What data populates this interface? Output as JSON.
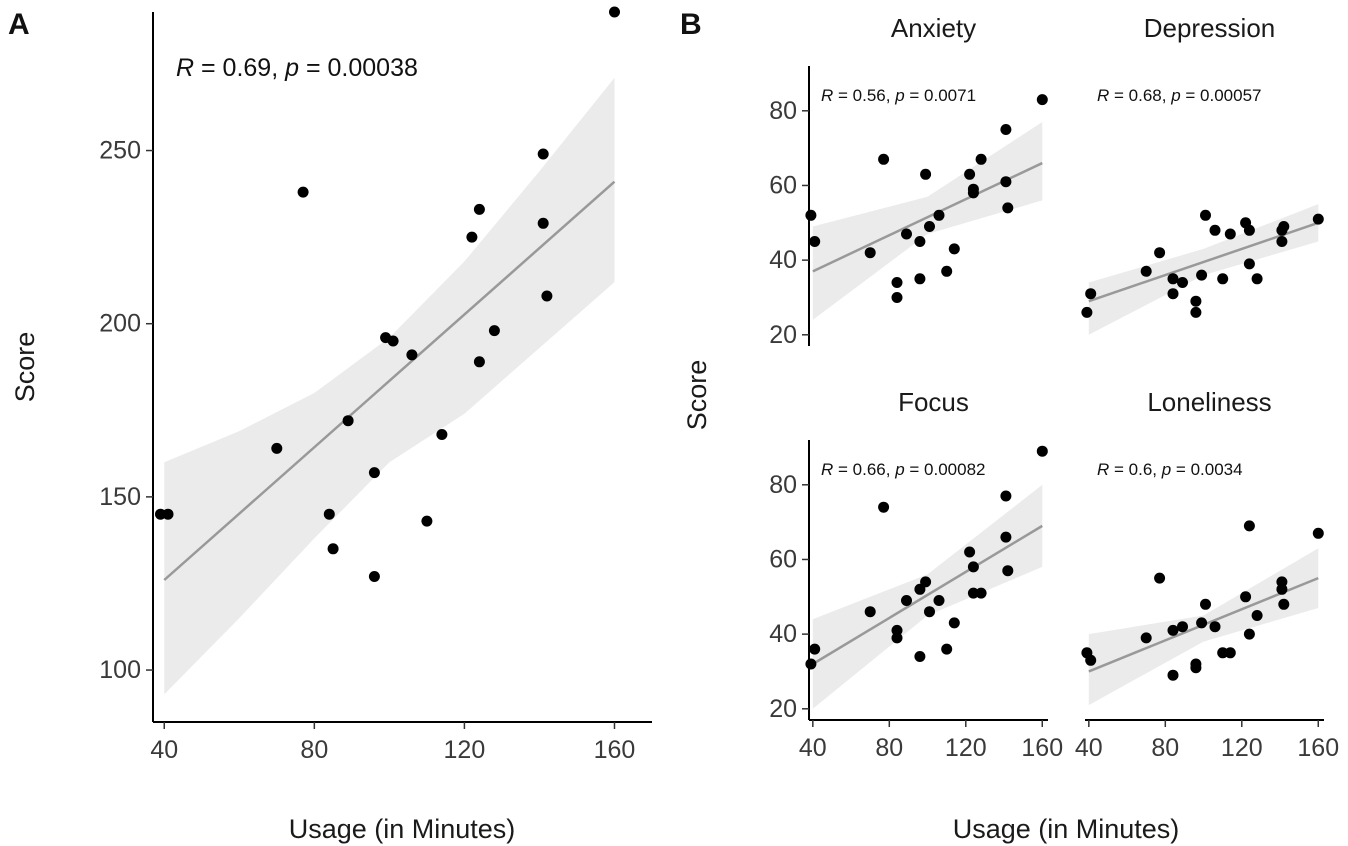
{
  "panels": {
    "a_label": "A",
    "b_label": "B"
  },
  "colors": {
    "point": "#000000",
    "line": "#999999",
    "band": "#ebebeb"
  },
  "chart_data": [
    {
      "type": "scatter",
      "id": "A",
      "title": "",
      "xlabel": "Usage (in Minutes)",
      "ylabel": "Score",
      "xlim": [
        37,
        170
      ],
      "ylim": [
        85,
        290
      ],
      "x_ticks": [
        40,
        80,
        120,
        160
      ],
      "y_ticks": [
        100,
        150,
        200,
        250
      ],
      "annotation": {
        "r_symbol": "R",
        "r_text": " = 0.69, ",
        "p_symbol": "p",
        "p_text": " = 0.00038"
      },
      "fit": {
        "x": [
          40,
          160
        ],
        "y": [
          126,
          241
        ]
      },
      "band": {
        "x": [
          40,
          60,
          80,
          100,
          120,
          140,
          160
        ],
        "upper": [
          160,
          169,
          180,
          196,
          218,
          244,
          271
        ],
        "lower": [
          93,
          115,
          138,
          160,
          174,
          193,
          212
        ]
      },
      "points": [
        {
          "x": 39,
          "y": 145
        },
        {
          "x": 41,
          "y": 145
        },
        {
          "x": 70,
          "y": 164
        },
        {
          "x": 77,
          "y": 238
        },
        {
          "x": 84,
          "y": 145
        },
        {
          "x": 85,
          "y": 135
        },
        {
          "x": 89,
          "y": 172
        },
        {
          "x": 96,
          "y": 157
        },
        {
          "x": 96,
          "y": 127
        },
        {
          "x": 99,
          "y": 196
        },
        {
          "x": 101,
          "y": 195
        },
        {
          "x": 106,
          "y": 191
        },
        {
          "x": 110,
          "y": 143
        },
        {
          "x": 114,
          "y": 168
        },
        {
          "x": 122,
          "y": 225
        },
        {
          "x": 124,
          "y": 189
        },
        {
          "x": 124,
          "y": 233
        },
        {
          "x": 128,
          "y": 198
        },
        {
          "x": 141,
          "y": 249
        },
        {
          "x": 141,
          "y": 229
        },
        {
          "x": 142,
          "y": 208
        },
        {
          "x": 160,
          "y": 290
        }
      ]
    },
    {
      "type": "scatter",
      "id": "B",
      "xlabel": "Usage (in Minutes)",
      "ylabel": "Score",
      "xlim": [
        38,
        163
      ],
      "ylim": [
        17,
        92
      ],
      "x_ticks": [
        40,
        80,
        120,
        160
      ],
      "y_ticks": [
        20,
        40,
        60,
        80
      ],
      "facets": [
        {
          "title": "Anxiety",
          "annotation": {
            "r_symbol": "R",
            "r_text": " = 0.56, ",
            "p_symbol": "p",
            "p_text": " = 0.0071"
          },
          "fit": {
            "x": [
              40,
              160
            ],
            "y": [
              37,
              66
            ]
          },
          "band": {
            "x": [
              40,
              100,
              160
            ],
            "upper": [
              49,
              57,
              77
            ],
            "lower": [
              24,
              47,
              56
            ]
          },
          "points": [
            {
              "x": 39,
              "y": 52
            },
            {
              "x": 41,
              "y": 45
            },
            {
              "x": 70,
              "y": 42
            },
            {
              "x": 77,
              "y": 67
            },
            {
              "x": 84,
              "y": 34
            },
            {
              "x": 84,
              "y": 30
            },
            {
              "x": 89,
              "y": 47
            },
            {
              "x": 96,
              "y": 45
            },
            {
              "x": 96,
              "y": 35
            },
            {
              "x": 99,
              "y": 63
            },
            {
              "x": 101,
              "y": 49
            },
            {
              "x": 106,
              "y": 52
            },
            {
              "x": 110,
              "y": 37
            },
            {
              "x": 114,
              "y": 43
            },
            {
              "x": 122,
              "y": 63
            },
            {
              "x": 124,
              "y": 59
            },
            {
              "x": 124,
              "y": 58
            },
            {
              "x": 128,
              "y": 67
            },
            {
              "x": 141,
              "y": 75
            },
            {
              "x": 141,
              "y": 61
            },
            {
              "x": 142,
              "y": 54
            },
            {
              "x": 160,
              "y": 83
            }
          ]
        },
        {
          "title": "Depression",
          "annotation": {
            "r_symbol": "R",
            "r_text": " = 0.68, ",
            "p_symbol": "p",
            "p_text": " = 0.00057"
          },
          "fit": {
            "x": [
              40,
              160
            ],
            "y": [
              29,
              50
            ]
          },
          "band": {
            "x": [
              40,
              100,
              160
            ],
            "upper": [
              34,
              43,
              55
            ],
            "lower": [
              20,
              36,
              45
            ]
          },
          "points": [
            {
              "x": 39,
              "y": 26
            },
            {
              "x": 41,
              "y": 31
            },
            {
              "x": 70,
              "y": 37
            },
            {
              "x": 77,
              "y": 42
            },
            {
              "x": 84,
              "y": 35
            },
            {
              "x": 84,
              "y": 31
            },
            {
              "x": 89,
              "y": 34
            },
            {
              "x": 96,
              "y": 29
            },
            {
              "x": 96,
              "y": 26
            },
            {
              "x": 99,
              "y": 36
            },
            {
              "x": 101,
              "y": 52
            },
            {
              "x": 106,
              "y": 48
            },
            {
              "x": 110,
              "y": 35
            },
            {
              "x": 114,
              "y": 47
            },
            {
              "x": 122,
              "y": 50
            },
            {
              "x": 124,
              "y": 48
            },
            {
              "x": 124,
              "y": 39
            },
            {
              "x": 128,
              "y": 35
            },
            {
              "x": 141,
              "y": 48
            },
            {
              "x": 141,
              "y": 45
            },
            {
              "x": 142,
              "y": 49
            },
            {
              "x": 160,
              "y": 51
            }
          ]
        },
        {
          "title": "Focus",
          "annotation": {
            "r_symbol": "R",
            "r_text": " = 0.66, ",
            "p_symbol": "p",
            "p_text": " = 0.00082"
          },
          "fit": {
            "x": [
              40,
              160
            ],
            "y": [
              32,
              69
            ]
          },
          "band": {
            "x": [
              40,
              100,
              160
            ],
            "upper": [
              44,
              56,
              80
            ],
            "lower": [
              20,
              45,
              58
            ]
          },
          "points": [
            {
              "x": 39,
              "y": 32
            },
            {
              "x": 41,
              "y": 36
            },
            {
              "x": 70,
              "y": 46
            },
            {
              "x": 77,
              "y": 74
            },
            {
              "x": 84,
              "y": 39
            },
            {
              "x": 84,
              "y": 41
            },
            {
              "x": 89,
              "y": 49
            },
            {
              "x": 96,
              "y": 52
            },
            {
              "x": 96,
              "y": 34
            },
            {
              "x": 99,
              "y": 54
            },
            {
              "x": 101,
              "y": 46
            },
            {
              "x": 106,
              "y": 49
            },
            {
              "x": 110,
              "y": 36
            },
            {
              "x": 114,
              "y": 43
            },
            {
              "x": 122,
              "y": 62
            },
            {
              "x": 124,
              "y": 58
            },
            {
              "x": 124,
              "y": 51
            },
            {
              "x": 128,
              "y": 51
            },
            {
              "x": 141,
              "y": 77
            },
            {
              "x": 141,
              "y": 66
            },
            {
              "x": 142,
              "y": 57
            },
            {
              "x": 160,
              "y": 89
            }
          ]
        },
        {
          "title": "Loneliness",
          "annotation": {
            "r_symbol": "R",
            "r_text": " = 0.6, ",
            "p_symbol": "p",
            "p_text": " = 0.0034"
          },
          "fit": {
            "x": [
              40,
              160
            ],
            "y": [
              30,
              55
            ]
          },
          "band": {
            "x": [
              40,
              100,
              160
            ],
            "upper": [
              40,
              45,
              63
            ],
            "lower": [
              21,
              38,
              47
            ]
          },
          "points": [
            {
              "x": 39,
              "y": 35
            },
            {
              "x": 41,
              "y": 33
            },
            {
              "x": 70,
              "y": 39
            },
            {
              "x": 77,
              "y": 55
            },
            {
              "x": 84,
              "y": 29
            },
            {
              "x": 84,
              "y": 41
            },
            {
              "x": 89,
              "y": 42
            },
            {
              "x": 96,
              "y": 32
            },
            {
              "x": 96,
              "y": 31
            },
            {
              "x": 99,
              "y": 43
            },
            {
              "x": 101,
              "y": 48
            },
            {
              "x": 106,
              "y": 42
            },
            {
              "x": 110,
              "y": 35
            },
            {
              "x": 114,
              "y": 35
            },
            {
              "x": 122,
              "y": 50
            },
            {
              "x": 124,
              "y": 69
            },
            {
              "x": 124,
              "y": 40
            },
            {
              "x": 128,
              "y": 45
            },
            {
              "x": 141,
              "y": 54
            },
            {
              "x": 141,
              "y": 52
            },
            {
              "x": 142,
              "y": 48
            },
            {
              "x": 160,
              "y": 67
            }
          ]
        }
      ]
    }
  ]
}
